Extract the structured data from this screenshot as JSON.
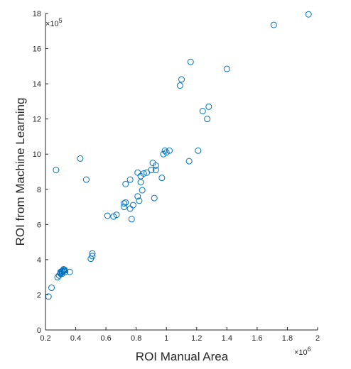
{
  "chart_data": {
    "type": "scatter",
    "title": "",
    "xlabel": "ROI Manual Area",
    "ylabel": "ROI from Machine Learning",
    "x_multiplier_label": "×10",
    "x_multiplier_exp": "6",
    "y_multiplier_label": "×10",
    "y_multiplier_exp": "5",
    "xlim": [
      0.2,
      2.0
    ],
    "ylim": [
      0,
      18
    ],
    "xticks": [
      0.2,
      0.4,
      0.6,
      0.8,
      1.0,
      1.2,
      1.4,
      1.6,
      1.8,
      2.0
    ],
    "xtick_labels": [
      "0.2",
      "0.4",
      "0.6",
      "0.8",
      "1",
      "1.2",
      "1.4",
      "1.6",
      "1.8",
      "2"
    ],
    "yticks": [
      0,
      2,
      4,
      6,
      8,
      10,
      12,
      14,
      16,
      18
    ],
    "ytick_labels": [
      "0",
      "2",
      "4",
      "6",
      "8",
      "10",
      "12",
      "14",
      "16",
      "18"
    ],
    "grid": false,
    "legend": "none",
    "marker_color": "#0072BD",
    "axis_color": "#262626",
    "points": [
      [
        0.22,
        1.9
      ],
      [
        0.24,
        2.4
      ],
      [
        0.27,
        9.1
      ],
      [
        0.28,
        3.0
      ],
      [
        0.29,
        3.1
      ],
      [
        0.3,
        3.2
      ],
      [
        0.3,
        3.25
      ],
      [
        0.31,
        3.3
      ],
      [
        0.31,
        3.35
      ],
      [
        0.32,
        3.4
      ],
      [
        0.32,
        3.45
      ],
      [
        0.33,
        3.4
      ],
      [
        0.33,
        3.3
      ],
      [
        0.31,
        3.2
      ],
      [
        0.3,
        3.3
      ],
      [
        0.32,
        3.35
      ],
      [
        0.36,
        3.3
      ],
      [
        0.43,
        9.75
      ],
      [
        0.47,
        8.55
      ],
      [
        0.5,
        4.05
      ],
      [
        0.51,
        4.2
      ],
      [
        0.51,
        4.35
      ],
      [
        0.61,
        6.5
      ],
      [
        0.65,
        6.45
      ],
      [
        0.67,
        6.55
      ],
      [
        0.72,
        7.2
      ],
      [
        0.72,
        7.0
      ],
      [
        0.73,
        7.25
      ],
      [
        0.73,
        8.3
      ],
      [
        0.76,
        6.9
      ],
      [
        0.76,
        8.55
      ],
      [
        0.77,
        6.3
      ],
      [
        0.78,
        7.1
      ],
      [
        0.81,
        7.6
      ],
      [
        0.81,
        8.95
      ],
      [
        0.82,
        7.35
      ],
      [
        0.83,
        8.75
      ],
      [
        0.83,
        8.4
      ],
      [
        0.84,
        7.95
      ],
      [
        0.85,
        8.9
      ],
      [
        0.87,
        8.95
      ],
      [
        0.9,
        9.1
      ],
      [
        0.91,
        9.5
      ],
      [
        0.92,
        7.5
      ],
      [
        0.93,
        9.35
      ],
      [
        0.93,
        9.1
      ],
      [
        0.97,
        8.65
      ],
      [
        0.98,
        10.0
      ],
      [
        0.99,
        10.2
      ],
      [
        1.0,
        10.1
      ],
      [
        1.02,
        10.2
      ],
      [
        1.09,
        13.9
      ],
      [
        1.1,
        14.25
      ],
      [
        1.15,
        9.6
      ],
      [
        1.16,
        15.25
      ],
      [
        1.21,
        10.2
      ],
      [
        1.24,
        12.45
      ],
      [
        1.27,
        12.0
      ],
      [
        1.28,
        12.7
      ],
      [
        1.4,
        14.85
      ],
      [
        1.71,
        17.35
      ],
      [
        1.94,
        17.95
      ]
    ]
  }
}
